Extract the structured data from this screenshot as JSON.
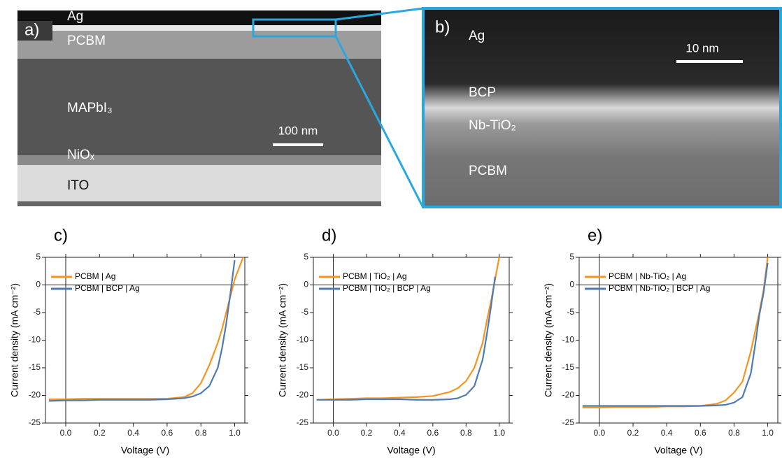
{
  "images": [
    {
      "panel": "a)",
      "labels": [
        "Ag",
        "PCBM",
        "MAPbI₃",
        "NiOₓ",
        "ITO"
      ],
      "scale_bar": "100 nm"
    },
    {
      "panel": "b)",
      "labels": [
        "Ag",
        "BCP",
        "Nb-TiO₂",
        "PCBM"
      ],
      "scale_bar": "10 nm"
    }
  ],
  "chart_data": [
    {
      "type": "line",
      "title": "c)",
      "x_label": "Voltage (V)",
      "y_label": "Current density (mA cm⁻²)",
      "x": [
        -0.1,
        0,
        0.1,
        0.2,
        0.3,
        0.4,
        0.5,
        0.6,
        0.7,
        0.75,
        0.8,
        0.85,
        0.9,
        0.925,
        0.95,
        0.975,
        1.0,
        1.025,
        1.05
      ],
      "series": [
        {
          "name": "PCBM | Ag",
          "color": "#f7941d",
          "values": [
            -20.7,
            -20.7,
            -20.6,
            -20.6,
            -20.6,
            -20.6,
            -20.6,
            -20.6,
            -20.3,
            -19.6,
            -17.8,
            -14.5,
            -10.5,
            -8,
            -5,
            -2,
            1,
            3,
            5
          ]
        },
        {
          "name": "PCBM | BCP | Ag",
          "color": "#4f7ab3",
          "values": [
            -21,
            -20.9,
            -20.9,
            -20.8,
            -20.8,
            -20.8,
            -20.8,
            -20.7,
            -20.5,
            -20.2,
            -19.6,
            -18.3,
            -15,
            -11.5,
            -7,
            -1.5,
            4.5,
            null,
            null
          ]
        }
      ],
      "xlim": [
        -0.12,
        1.06
      ],
      "ylim": [
        -25,
        5
      ],
      "xticks": [
        {
          "value": 0,
          "label": "0.0"
        },
        0.2,
        0.4,
        0.6,
        0.8,
        {
          "value": 1,
          "label": "1.0"
        }
      ],
      "yticks": [
        -25,
        -20,
        -15,
        -10,
        -5,
        0,
        5
      ]
    },
    {
      "type": "line",
      "title": "d)",
      "x_label": "Voltage (V)",
      "y_label": "Current density (mA cm⁻²)",
      "x": [
        -0.1,
        0,
        0.1,
        0.2,
        0.3,
        0.4,
        0.5,
        0.6,
        0.7,
        0.75,
        0.8,
        0.85,
        0.9,
        0.925,
        0.95,
        0.975,
        1.0,
        1.025,
        1.05
      ],
      "series": [
        {
          "name": "PCBM | TiO₂ | Ag",
          "color": "#f7941d",
          "values": [
            -20.8,
            -20.7,
            -20.6,
            -20.5,
            -20.5,
            -20.4,
            -20.3,
            -20.1,
            -19.4,
            -18.7,
            -17.4,
            -15,
            -10.5,
            -6.5,
            -3,
            1,
            5,
            null,
            null
          ]
        },
        {
          "name": "PCBM | TiO₂ | BCP | Ag",
          "color": "#4f7ab3",
          "values": [
            -20.8,
            -20.8,
            -20.8,
            -20.7,
            -20.7,
            -20.7,
            -20.8,
            -20.8,
            -20.7,
            -20.5,
            -19.9,
            -18.3,
            -13.5,
            -9,
            -4,
            1.5,
            null,
            null,
            null
          ]
        }
      ],
      "xlim": [
        -0.12,
        1.06
      ],
      "ylim": [
        -25,
        5
      ],
      "xticks": [
        {
          "value": 0,
          "label": "0.0"
        },
        0.2,
        0.4,
        0.6,
        0.8,
        {
          "value": 1,
          "label": "1.0"
        }
      ],
      "yticks": [
        -25,
        -20,
        -15,
        -10,
        -5,
        0,
        5
      ]
    },
    {
      "type": "line",
      "title": "e)",
      "x_label": "Voltage (V)",
      "y_label": "Current density (mA cm⁻²)",
      "x": [
        -0.1,
        0,
        0.1,
        0.2,
        0.3,
        0.4,
        0.5,
        0.6,
        0.7,
        0.75,
        0.8,
        0.85,
        0.9,
        0.925,
        0.95,
        0.975,
        1.0,
        1.025,
        1.05
      ],
      "series": [
        {
          "name": "PCBM | Nb-TiO₂ | Ag",
          "color": "#f7941d",
          "values": [
            -22.2,
            -22.2,
            -22.1,
            -22.1,
            -22.1,
            -22,
            -22,
            -21.9,
            -21.5,
            -20.9,
            -19.5,
            -17.5,
            -12,
            -8.5,
            -5,
            -1,
            5,
            null,
            null
          ]
        },
        {
          "name": "PCBM | Nb-TiO₂ | BCP | Ag",
          "color": "#4f7ab3",
          "values": [
            -21.9,
            -21.9,
            -21.9,
            -21.9,
            -21.9,
            -21.9,
            -21.9,
            -21.9,
            -21.8,
            -21.7,
            -21.3,
            -20.3,
            -16,
            -11,
            -5.5,
            -1.5,
            4,
            null,
            null
          ]
        }
      ],
      "xlim": [
        -0.12,
        1.06
      ],
      "ylim": [
        -25,
        5
      ],
      "xticks": [
        {
          "value": 0,
          "label": "0.0"
        },
        0.2,
        0.4,
        0.6,
        0.8,
        {
          "value": 1,
          "label": "1.0"
        }
      ],
      "yticks": [
        -25,
        -20,
        -15,
        -10,
        -5,
        0,
        5
      ]
    }
  ]
}
